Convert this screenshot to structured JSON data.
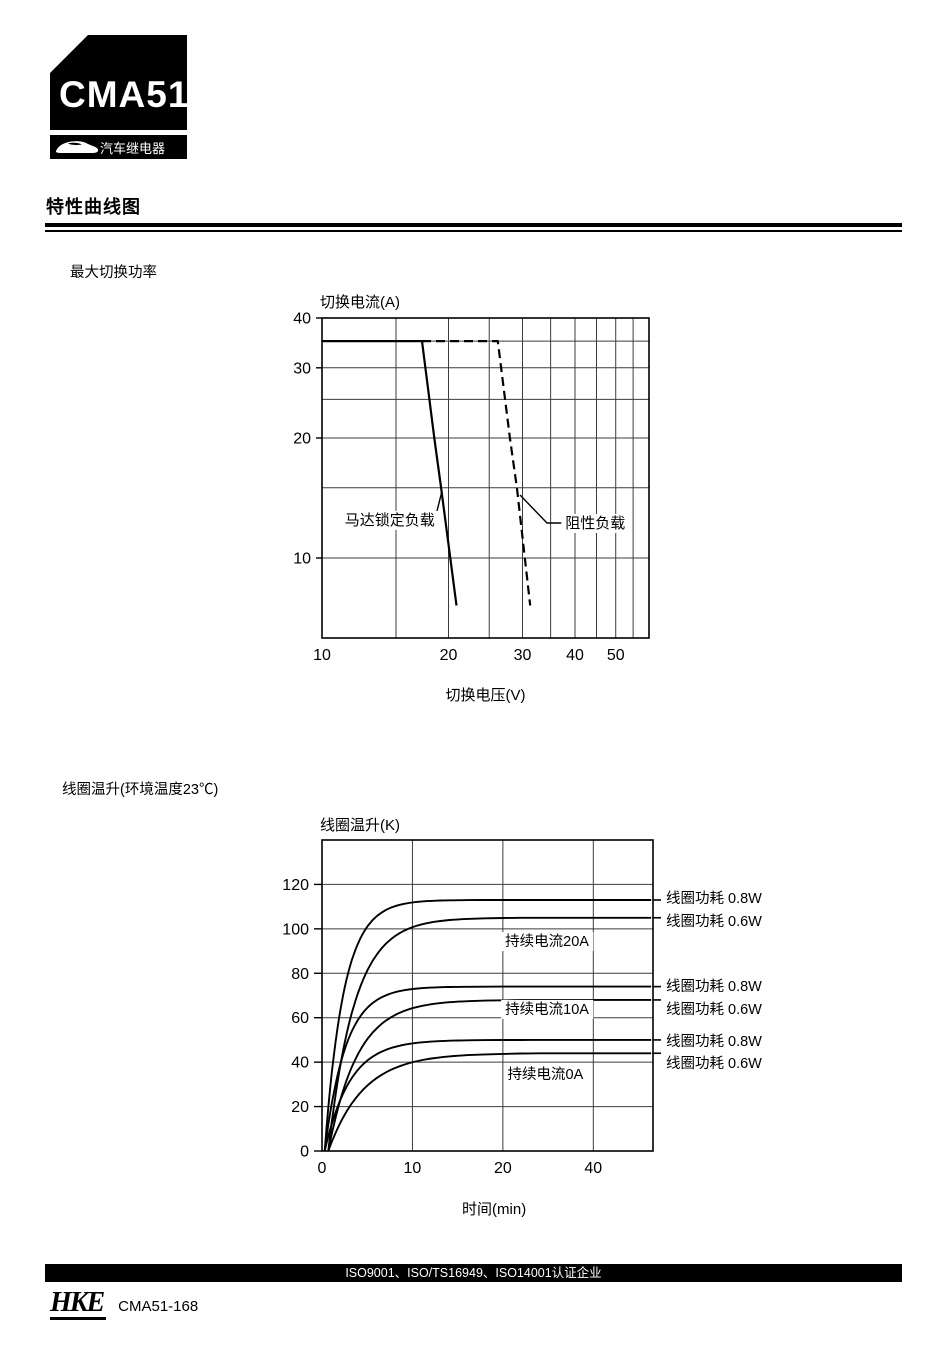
{
  "page": {
    "bg": "#ffffff",
    "ink": "#000000",
    "grid_color": "#3c3c3c"
  },
  "header": {
    "badge_model": "CMA51",
    "car_icon": "car-silhouette",
    "badge_tagline": "汽车继电器",
    "section_title": "特性曲线图"
  },
  "chart_data": [
    {
      "type": "line",
      "title": "最大切换功率",
      "ylabel": "切换电流(A)",
      "xlabel": "切换电压(V)",
      "x_scale": "log",
      "y_scale": "log",
      "xlim": [
        10,
        60
      ],
      "ylim": [
        6.3,
        40
      ],
      "x_gridlines": [
        15,
        20,
        25,
        30,
        35,
        40,
        45,
        50,
        55
      ],
      "x_ticklabels": [
        10,
        20,
        30,
        40,
        50
      ],
      "y_gridlines": [
        35,
        30,
        25,
        20,
        15,
        10
      ],
      "y_ticklabels": [
        40,
        30,
        20,
        10
      ],
      "series": [
        {
          "name": "马达锁定负载",
          "style": "solid",
          "points": [
            [
              10,
              35
            ],
            [
              17.3,
              35
            ],
            [
              18.5,
              20
            ],
            [
              19.2,
              15
            ],
            [
              20.9,
              7.6
            ]
          ]
        },
        {
          "name": "阻性负载",
          "style": "dashed",
          "points": [
            [
              17.3,
              35
            ],
            [
              26.2,
              35
            ],
            [
              28,
              20
            ],
            [
              29.1,
              15
            ],
            [
              31.3,
              7.6
            ]
          ]
        }
      ],
      "annotations": [
        {
          "text": "马达锁定负载",
          "anchor": "end",
          "fx": 0.345,
          "fy": 0.631,
          "leader": [
            [
              0.3486,
              0.6156
            ],
            [
              0.367,
              0.5406
            ]
          ]
        },
        {
          "text": "阻性负载",
          "anchor": "start",
          "fx": 0.744,
          "fy": 0.6406,
          "leader": [
            [
              0.6055,
              0.553
            ],
            [
              0.688,
              0.6406
            ],
            [
              0.734,
              0.6406
            ]
          ]
        }
      ]
    },
    {
      "type": "line",
      "title": "线圈温升(环境温度23℃)",
      "ylabel": "线圈温升(K)",
      "xlabel": "时间(min)",
      "x_scale": "piecewise",
      "y_scale": "linear",
      "ylim": [
        0,
        140
      ],
      "x_tick_values": [
        0,
        10,
        20,
        40
      ],
      "x_max_units": 3.66,
      "y_gridlines": [
        20,
        40,
        60,
        80,
        100,
        120
      ],
      "y_ticklabels": [
        0,
        20,
        40,
        60,
        80,
        100,
        120
      ],
      "series": [
        {
          "group": "持续电流20A",
          "name": "线圈功耗 0.8W",
          "plateau": 113,
          "tau": 2.1,
          "t0": 0.3
        },
        {
          "group": "持续电流20A",
          "name": "线圈功耗 0.6W",
          "plateau": 105,
          "tau": 2.9,
          "t0": 0.7
        },
        {
          "group": "持续电流10A",
          "name": "线圈功耗 0.8W",
          "plateau": 74,
          "tau": 2.3,
          "t0": 0.3
        },
        {
          "group": "持续电流10A",
          "name": "线圈功耗 0.6W",
          "plateau": 68,
          "tau": 3.2,
          "t0": 0.7
        },
        {
          "group": "持续电流0A",
          "name": "线圈功耗 0.8W",
          "plateau": 50,
          "tau": 2.8,
          "t0": 0.3
        },
        {
          "group": "持续电流0A",
          "name": "线圈功耗 0.6W",
          "plateau": 44,
          "tau": 3.9,
          "t0": 0.7
        }
      ],
      "group_labels": [
        {
          "text": "持续电流20A",
          "fx": 0.68,
          "fy": 0.325
        },
        {
          "text": "持续电流10A",
          "fx": 0.68,
          "fy": 0.543
        },
        {
          "text": "持续电流0A",
          "fx": 0.675,
          "fy": 0.752
        }
      ],
      "right_labels": [
        {
          "text": "线圈功耗 0.8W",
          "fy": 0.186,
          "stub_value": 113
        },
        {
          "text": "线圈功耗 0.6W",
          "fy": 0.26,
          "stub_value": 105
        },
        {
          "text": "线圈功耗 0.8W",
          "fy": 0.469,
          "stub_value": 74
        },
        {
          "text": "线圈功耗 0.6W",
          "fy": 0.543,
          "stub_value": 68
        },
        {
          "text": "线圈功耗 0.8W",
          "fy": 0.646,
          "stub_value": 50
        },
        {
          "text": "线圈功耗 0.6W",
          "fy": 0.717,
          "stub_value": 44
        }
      ]
    }
  ],
  "footer": {
    "cert_text": "ISO9001、ISO/TS16949、ISO14001认证企业",
    "logo_text": "HKE",
    "doc_code": "CMA51-168"
  }
}
